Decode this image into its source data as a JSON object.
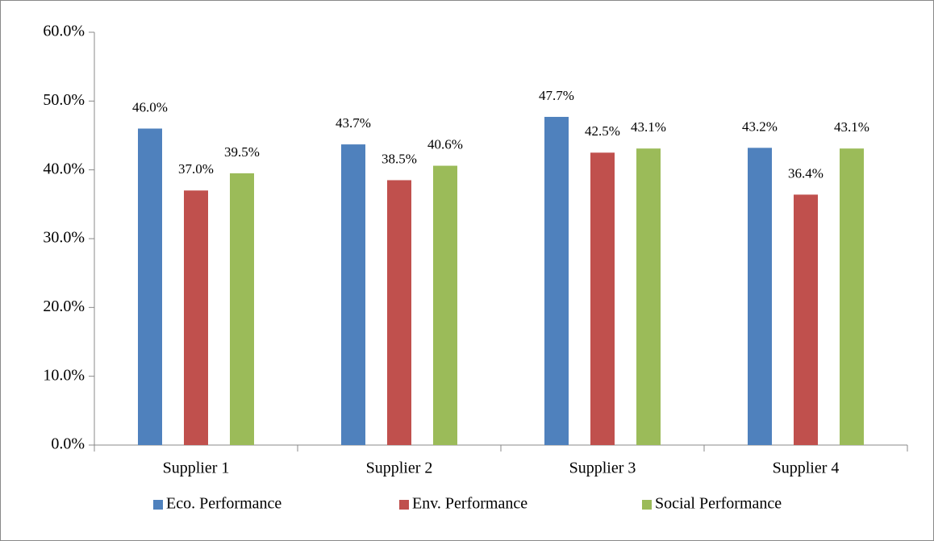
{
  "chart_data": {
    "type": "bar",
    "categories": [
      "Supplier 1",
      "Supplier 2",
      "Supplier 3",
      "Supplier 4"
    ],
    "series": [
      {
        "name": "Eco. Performance",
        "color": "#4f81bd",
        "values": [
          46.0,
          43.7,
          47.7,
          43.2
        ],
        "value_labels": [
          "46.0%",
          "43.7%",
          "47.7%",
          "43.2%"
        ]
      },
      {
        "name": "Env. Performance",
        "color": "#c0504d",
        "values": [
          37.0,
          38.5,
          42.5,
          36.4
        ],
        "value_labels": [
          "37.0%",
          "38.5%",
          "42.5%",
          "36.4%"
        ]
      },
      {
        "name": "Social Performance",
        "color": "#9bbb59",
        "values": [
          39.5,
          40.6,
          43.1,
          43.1
        ],
        "value_labels": [
          "39.5%",
          "40.6%",
          "43.1%",
          "43.1%"
        ]
      }
    ],
    "ylim": [
      0,
      60
    ],
    "yticks": [
      {
        "value": 0,
        "label": "0.0%"
      },
      {
        "value": 10,
        "label": "10.0%"
      },
      {
        "value": 20,
        "label": "20.0%"
      },
      {
        "value": 30,
        "label": "30.0%"
      },
      {
        "value": 40,
        "label": "40.0%"
      },
      {
        "value": 50,
        "label": "50.0%"
      },
      {
        "value": 60,
        "label": "60.0%"
      }
    ],
    "legend": "bottom"
  }
}
